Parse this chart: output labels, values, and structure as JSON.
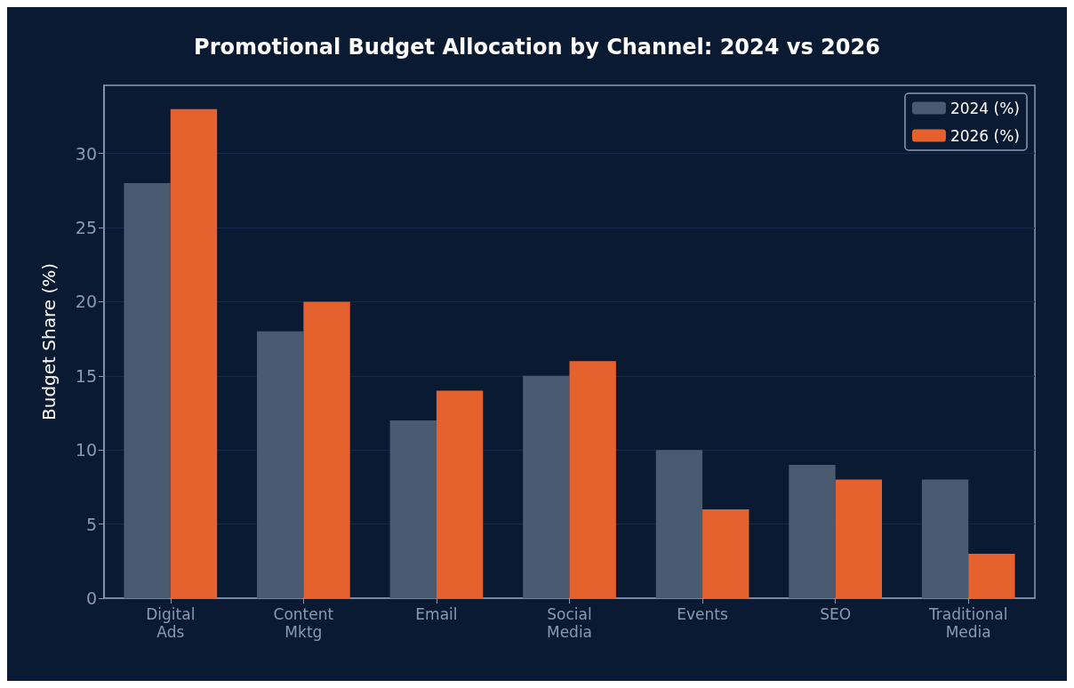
{
  "chart_data": {
    "type": "bar",
    "title": "Promotional Budget Allocation by Channel: 2024 vs 2026",
    "ylabel": "Budget Share (%)",
    "categories": [
      "Digital Ads",
      "Content Mktg",
      "Email",
      "Social Media",
      "Events",
      "SEO",
      "Traditional Media"
    ],
    "series": [
      {
        "name": "2024 (%)",
        "color": "#4a5a70",
        "values": [
          28,
          18,
          12,
          15,
          10,
          9,
          8
        ]
      },
      {
        "name": "2026 (%)",
        "color": "#e5622e",
        "values": [
          33,
          20,
          14,
          16,
          6,
          8,
          3
        ]
      }
    ],
    "ylim": [
      0,
      34.6
    ],
    "yticks": [
      0,
      5,
      10,
      15,
      20,
      25,
      30
    ],
    "grid": "y",
    "legend": "top right"
  }
}
